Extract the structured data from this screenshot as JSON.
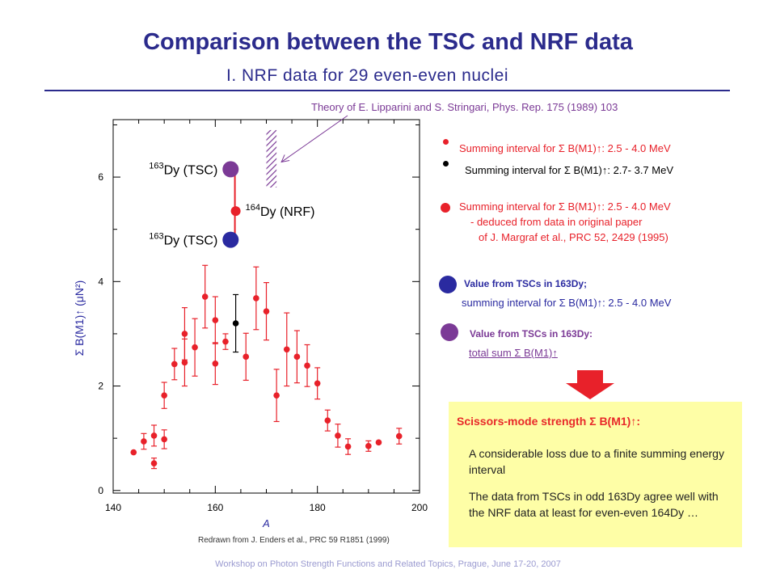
{
  "title": "Comparison between the TSC and NRF data",
  "subtitle": "I. NRF data for 29 even-even nuclei",
  "theory_note": "Theory of E. Lipparini and S. Stringari, Phys. Rep. 175 (1989) 103",
  "credit": "Redrawn from J. Enders et al., PRC 59 R1851 (1999)",
  "footer": "Workshop on Photon Strength Functions and Related Topics, Prague, June 17-20, 2007",
  "colors": {
    "nrf": "#e8212a",
    "tsc": "#7b3a96",
    "tsc_value": "#2a2aa0",
    "title": "#2b2b8c",
    "box": "#fefea6"
  },
  "chart_data": {
    "type": "scatter",
    "xlabel": "A",
    "ylabel": "Σ B(M1)↑ (μN²)",
    "xlim": [
      140,
      200
    ],
    "ylim": [
      -0.05,
      7.1
    ],
    "x_ticks": [
      "140",
      "160",
      "180",
      "200"
    ],
    "y_ticks": [
      "0",
      "2",
      "4",
      "6"
    ],
    "series": [
      {
        "color": "#e8212a",
        "points": [
          {
            "x": 144,
            "y": 0.73,
            "err": 0
          },
          {
            "x": 146,
            "y": 0.94,
            "err": 0.15
          },
          {
            "x": 148,
            "y": 1.05,
            "err": 0.2
          },
          {
            "x": 148,
            "y": 0.52,
            "err": 0.1
          },
          {
            "x": 150,
            "y": 0.98,
            "err": 0.18
          },
          {
            "x": 150,
            "y": 1.82,
            "err": 0.25
          },
          {
            "x": 152,
            "y": 2.42,
            "err": 0.3
          },
          {
            "x": 154,
            "y": 2.45,
            "err": 0.45
          },
          {
            "x": 154,
            "y": 3.0,
            "err": 0.5
          },
          {
            "x": 156,
            "y": 2.74,
            "err": 0.55
          },
          {
            "x": 158,
            "y": 3.71,
            "err": 0.6
          },
          {
            "x": 160,
            "y": 2.43,
            "err": 0.4
          },
          {
            "x": 160,
            "y": 3.26,
            "err": 0.45
          },
          {
            "x": 162,
            "y": 2.85,
            "err": 0.15
          },
          {
            "x": 166,
            "y": 2.56,
            "err": 0.45
          },
          {
            "x": 168,
            "y": 3.68,
            "err": 0.6
          },
          {
            "x": 170,
            "y": 3.43,
            "err": 0.55
          },
          {
            "x": 172,
            "y": 1.82,
            "err": 0.5
          },
          {
            "x": 174,
            "y": 2.7,
            "err": 0.7
          },
          {
            "x": 176,
            "y": 2.56,
            "err": 0.5
          },
          {
            "x": 178,
            "y": 2.39,
            "err": 0.4
          },
          {
            "x": 180,
            "y": 2.05,
            "err": 0.3
          },
          {
            "x": 182,
            "y": 1.34,
            "err": 0.2
          },
          {
            "x": 184,
            "y": 1.05,
            "err": 0.22
          },
          {
            "x": 186,
            "y": 0.84,
            "err": 0.15
          },
          {
            "x": 190,
            "y": 0.85,
            "err": 0.1
          },
          {
            "x": 192,
            "y": 0.92,
            "err": 0
          },
          {
            "x": 196,
            "y": 1.04,
            "err": 0.15
          }
        ]
      },
      {
        "color": "#000000",
        "points": [
          {
            "x": 164,
            "y": 3.2,
            "err": 0.55
          }
        ]
      },
      {
        "color": "#e8212a",
        "points": [
          {
            "x": 164,
            "y": 5.35,
            "err": 0
          }
        ],
        "label": "Dy (NRF)",
        "mass": "164"
      },
      {
        "color": "#7b3a96",
        "points": [
          {
            "x": 163,
            "y": 6.15,
            "err": 0
          }
        ],
        "label": "Dy (TSC)",
        "mass": "163"
      },
      {
        "color": "#2a2aa0",
        "points": [
          {
            "x": 163,
            "y": 4.8,
            "err": 0
          }
        ],
        "label": "Dy (TSC)",
        "mass": "163"
      }
    ],
    "nrf_link": {
      "x": 164,
      "y_from": 6.15,
      "y_to": 4.8
    },
    "theory_band": {
      "x_from": 170,
      "x_to": 172,
      "y_from": 5.8,
      "y_to": 6.9
    }
  },
  "legend": [
    {
      "text": "Summing interval for Σ B(M1)↑: 2.5 - 4.0 MeV",
      "color": "#e8212a"
    },
    {
      "text": "Summing interval for Σ B(M1)↑: 2.7- 3.7 MeV",
      "color": "#000000"
    },
    {
      "text": "Summing interval for Σ B(M1)↑: 2.5 - 4.0 MeV",
      "color": "#e8212a",
      "note1": "- deduced from data in original paper",
      "note2": "of J. Margraf et al., PRC 52, 2429 (1995)"
    },
    {
      "line1": "Value from TSCs in 163Dy;",
      "line2": "summing interval for Σ B(M1)↑: 2.5 - 4.0 MeV",
      "color": "#2a2aa0"
    },
    {
      "line1": "Value from TSCs in 163Dy:",
      "line2": "total sum Σ B(M1)↑",
      "color": "#7b3a96"
    }
  ],
  "conclusion": {
    "title": "Scissors-mode strength Σ B(M1)↑:",
    "p1": "A considerable loss due to a finite summing energy interval",
    "p2": "The data from TSCs in odd 163Dy agree well with the NRF data at least for even-even 164Dy …"
  }
}
